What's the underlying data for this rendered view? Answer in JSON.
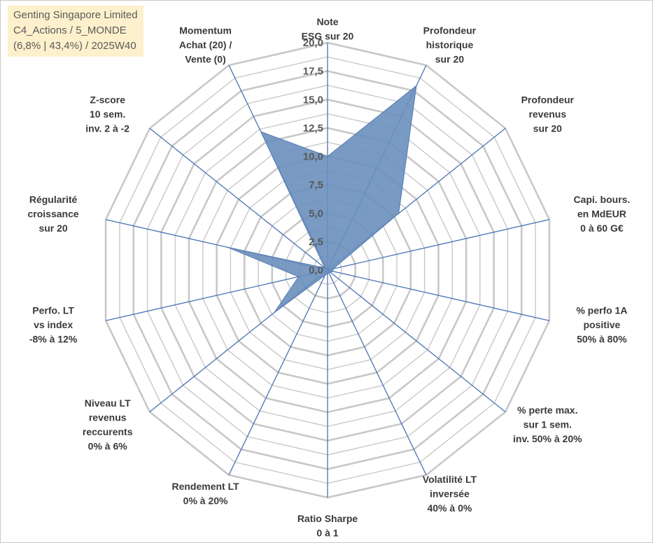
{
  "chart_data": {
    "type": "radar",
    "title_lines": [
      "Genting Singapore Limited",
      "C4_Actions / 5_MONDE",
      "(6,8% | 43,4%) / 2025W40"
    ],
    "rmin": 0,
    "rmax": 20,
    "ticks": [
      "0,0",
      "2,5",
      "5,0",
      "7,5",
      "10,0",
      "12,5",
      "15,0",
      "17,5",
      "20,0"
    ],
    "axes": [
      {
        "lines": [
          "Note",
          "ESG sur 20"
        ],
        "value": 10.0
      },
      {
        "lines": [
          "Profondeur",
          "historique",
          "sur 20"
        ],
        "value": 18.0
      },
      {
        "lines": [
          "Profondeur",
          "revenus",
          "sur 20"
        ],
        "value": 8.0
      },
      {
        "lines": [
          "Capi. bours.",
          "en MdEUR",
          "0 à 60 G€"
        ],
        "value": 0.5
      },
      {
        "lines": [
          "% perfo 1A",
          "positive",
          "50% à 80%"
        ],
        "value": 0.5
      },
      {
        "lines": [
          "% perte max.",
          "sur 1 sem.",
          "inv. 50% à 20%"
        ],
        "value": 0.3
      },
      {
        "lines": [
          "Volatilité LT",
          "inversée",
          "40% à 0%"
        ],
        "value": 0.3
      },
      {
        "lines": [
          "Ratio Sharpe",
          "0 à 1"
        ],
        "value": 0.3
      },
      {
        "lines": [
          "Rendement LT",
          "0% à 20%"
        ],
        "value": 0.5
      },
      {
        "lines": [
          "Niveau LT",
          "revenus",
          "reccurents",
          "0% à 6%"
        ],
        "value": 6.0
      },
      {
        "lines": [
          "Perfo. LT",
          "vs index",
          "-8% à 12%"
        ],
        "value": 2.6
      },
      {
        "lines": [
          "Régularité",
          "croissance",
          "sur 20"
        ],
        "value": 9.0
      },
      {
        "lines": [
          "Z-score",
          "10 sem.",
          "inv. 2 à -2"
        ],
        "value": 0.3
      },
      {
        "lines": [
          "Momentum",
          "Achat (20) /",
          "Vente (0)"
        ],
        "value": 13.5
      }
    ],
    "colors": {
      "fill": "#6a8fbd",
      "stroke": "#5b82b5",
      "grid": "#c8c8c8",
      "axis": "#4a74b4"
    }
  }
}
